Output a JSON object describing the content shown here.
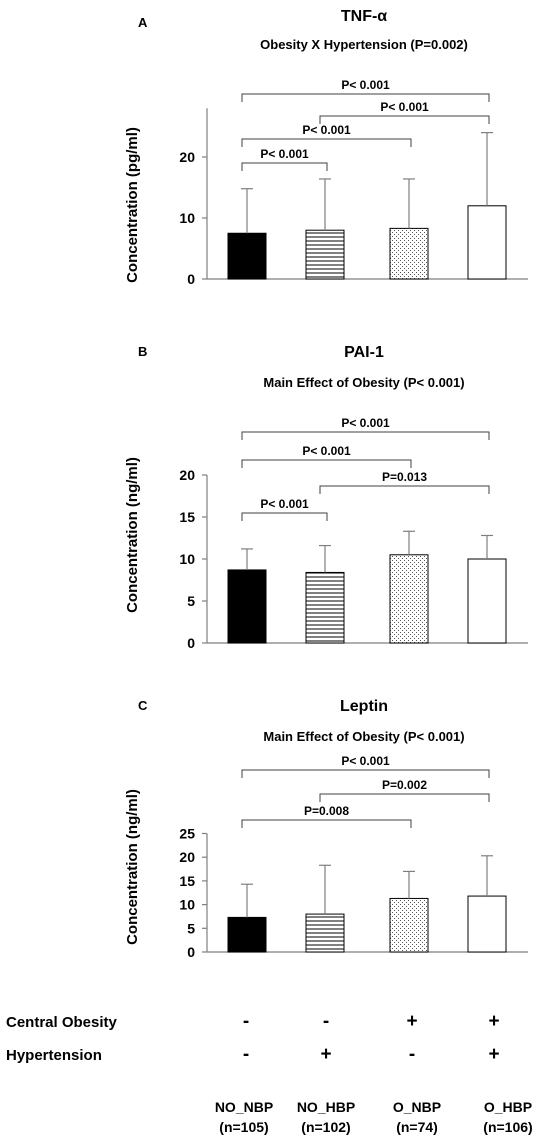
{
  "chart_data": [
    {
      "type": "bar",
      "panel_label": "A",
      "title": "TNF-α",
      "subtitle": "Obesity X Hypertension (P=0.002)",
      "ylabel": "Concentration (pg/ml)",
      "ylim": [
        0,
        28
      ],
      "yticks": [
        0,
        10,
        20
      ],
      "categories": [
        "NO_NBP",
        "NO_HBP",
        "O_NBP",
        "O_HBP"
      ],
      "values": [
        7.5,
        8.0,
        8.3,
        12.0
      ],
      "error_upper": [
        14.8,
        16.4,
        16.4,
        24.0
      ],
      "brackets": [
        {
          "from": 0,
          "to": 3,
          "label": "P< 0.001"
        },
        {
          "from": 1,
          "to": 3,
          "label": "P< 0.001"
        },
        {
          "from": 0,
          "to": 2,
          "label": "P< 0.001"
        },
        {
          "from": 0,
          "to": 1,
          "label": "P< 0.001"
        }
      ]
    },
    {
      "type": "bar",
      "panel_label": "B",
      "title": "PAI-1",
      "subtitle": "Main Effect of Obesity (P< 0.001)",
      "ylabel": "Concentration (ng/ml)",
      "ylim": [
        0,
        20
      ],
      "yticks": [
        0,
        5,
        10,
        15,
        20
      ],
      "categories": [
        "NO_NBP",
        "NO_HBP",
        "O_NBP",
        "O_HBP"
      ],
      "values": [
        8.7,
        8.4,
        10.5,
        10.0
      ],
      "error_upper": [
        11.2,
        11.6,
        13.3,
        12.8
      ],
      "brackets": [
        {
          "from": 0,
          "to": 3,
          "label": "P< 0.001"
        },
        {
          "from": 0,
          "to": 2,
          "label": "P< 0.001"
        },
        {
          "from": 1,
          "to": 3,
          "label": "P=0.013"
        },
        {
          "from": 0,
          "to": 1,
          "label": "P< 0.001"
        }
      ]
    },
    {
      "type": "bar",
      "panel_label": "C",
      "title": "Leptin",
      "subtitle": "Main Effect of Obesity (P< 0.001)",
      "ylabel": "Concentration (ng/ml)",
      "ylim": [
        0,
        25
      ],
      "yticks": [
        0,
        5,
        10,
        15,
        20,
        25
      ],
      "categories": [
        "NO_NBP",
        "NO_HBP",
        "O_NBP",
        "O_HBP"
      ],
      "values": [
        7.3,
        8.0,
        11.3,
        11.8
      ],
      "error_upper": [
        14.3,
        18.3,
        17.0,
        20.3
      ],
      "brackets": [
        {
          "from": 0,
          "to": 3,
          "label": "P< 0.001"
        },
        {
          "from": 1,
          "to": 3,
          "label": "P=0.002"
        },
        {
          "from": 0,
          "to": 2,
          "label": "P=0.008"
        }
      ]
    }
  ],
  "factors": [
    {
      "label": "Central Obesity",
      "values": [
        "-",
        "-",
        "+",
        "+"
      ]
    },
    {
      "label": "Hypertension",
      "values": [
        "-",
        "+",
        "-",
        "+"
      ]
    }
  ],
  "groups": [
    {
      "name": "NO_NBP",
      "n": "(n=105)"
    },
    {
      "name": "NO_HBP",
      "n": "(n=102)"
    },
    {
      "name": "O_NBP",
      "n": "(n=74)"
    },
    {
      "name": "O_HBP",
      "n": "(n=106)"
    }
  ],
  "bar_fills": [
    "solid",
    "horizontal-lines",
    "dots",
    "empty"
  ],
  "colors": {
    "ink": "#000000",
    "axis": "#7f7f7f",
    "bracket": "#404040",
    "background": "#ffffff"
  }
}
